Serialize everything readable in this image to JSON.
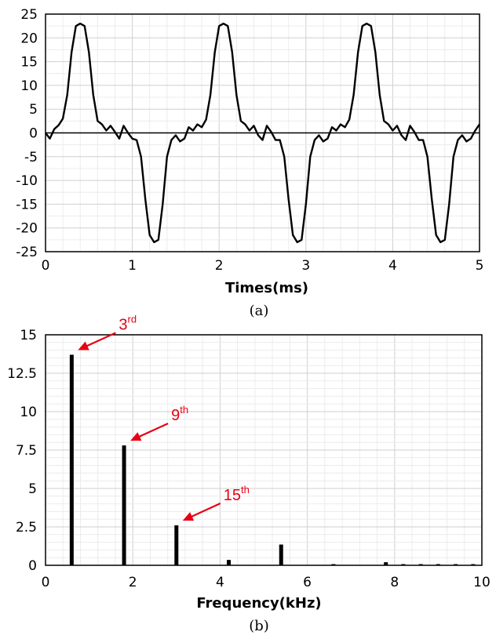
{
  "chart_data": [
    {
      "type": "line",
      "caption": "(a)",
      "title": "",
      "xlabel": "Times(ms)",
      "ylabel": "",
      "xlim": [
        0,
        5
      ],
      "ylim": [
        -25,
        25
      ],
      "xticks": [
        "0",
        "1",
        "2",
        "3",
        "4",
        "5"
      ],
      "yticks": [
        "25",
        "20",
        "15",
        "10",
        "5",
        "0",
        "-5",
        "-10",
        "-15",
        "-20",
        "-25"
      ],
      "grid": true,
      "period_ms": 1.6667,
      "series": [
        {
          "values_description_free": true,
          "x": [
            0,
            0.05,
            0.1,
            0.15,
            0.2,
            0.25,
            0.3,
            0.35,
            0.4,
            0.45,
            0.5,
            0.55,
            0.6,
            0.65,
            0.7,
            0.75,
            0.8,
            0.85,
            0.9,
            0.95,
            1.0,
            1.05,
            1.1,
            1.15,
            1.2,
            1.25,
            1.3,
            1.35,
            1.4,
            1.45,
            1.5,
            1.55,
            1.6,
            1.65,
            1.7,
            1.75,
            1.8,
            1.85,
            1.9,
            1.95,
            2.0,
            2.05,
            2.1,
            2.15,
            2.2,
            2.25,
            2.3,
            2.35,
            2.4,
            2.45,
            2.5,
            2.55,
            2.6,
            2.65,
            2.7,
            2.75,
            2.8,
            2.85,
            2.9,
            2.95,
            3.0,
            3.05,
            3.1,
            3.15,
            3.2,
            3.25,
            3.3,
            3.35,
            3.4,
            3.45,
            3.5,
            3.55,
            3.6,
            3.65,
            3.7,
            3.75,
            3.8,
            3.85,
            3.9,
            3.95,
            4.0,
            4.05,
            4.1,
            4.15,
            4.2,
            4.25,
            4.3,
            4.35,
            4.4,
            4.45,
            4.5,
            4.55,
            4.6,
            4.65,
            4.7,
            4.75,
            4.8,
            4.85,
            4.9,
            4.95,
            5.0
          ],
          "values": [
            0,
            -1.2,
            0.8,
            1.6,
            3,
            8,
            17,
            22.5,
            23,
            22.5,
            17,
            8,
            2.5,
            1.8,
            0.5,
            1.5,
            0.2,
            -1.2,
            1.5,
            0,
            -1.2,
            -1.5,
            -5,
            -14,
            -21.5,
            -23,
            -22.5,
            -15,
            -5,
            -1.5,
            -0.5,
            -1.8,
            -1.2,
            1.2,
            0.5,
            1.8,
            1.2,
            2.8,
            8,
            17,
            22.5,
            23,
            22.5,
            17,
            8,
            2.5,
            1.8,
            0.5,
            1.5,
            -0.5,
            -1.5,
            1.5,
            0.2,
            -1.5,
            -1.5,
            -5,
            -14,
            -21.5,
            -23,
            -22.5,
            -15,
            -5,
            -1.5,
            -0.5,
            -1.8,
            -1.2,
            1.2,
            0.5,
            1.8,
            1.2,
            2.8,
            8,
            17,
            22.5,
            23,
            22.5,
            17,
            8,
            2.5,
            1.8,
            0.5,
            1.5,
            -0.5,
            -1.5,
            1.5,
            0.2,
            -1.5,
            -1.5,
            -5,
            -14,
            -21.5,
            -23,
            -22.5,
            -15,
            -5,
            -1.5,
            -0.5,
            -1.8,
            -1.2,
            0.5,
            1.8
          ]
        }
      ]
    },
    {
      "type": "bar",
      "caption": "(b)",
      "title": "",
      "xlabel": "Frequency(kHz)",
      "ylabel": "",
      "xlim": [
        0,
        10
      ],
      "ylim": [
        0,
        15
      ],
      "xticks": [
        "0",
        "2",
        "4",
        "6",
        "8",
        "10"
      ],
      "yticks": [
        "15",
        "12.5",
        "10",
        "7.5",
        "5",
        "2.5",
        "0"
      ],
      "grid": true,
      "x": [
        0.6,
        1.8,
        3.0,
        4.2,
        5.4,
        6.6,
        7.8,
        8.2,
        8.6,
        9.0,
        9.4,
        9.8
      ],
      "values": [
        13.7,
        7.8,
        2.6,
        0.35,
        1.35,
        0.02,
        0.2,
        0.02,
        0.02,
        0.02,
        0.02,
        0.02
      ],
      "annotations": [
        {
          "base": "3",
          "sup": "rd",
          "x": 0.6,
          "y": 13.7
        },
        {
          "base": "9",
          "sup": "th",
          "x": 1.8,
          "y": 7.8
        },
        {
          "base": "15",
          "sup": "th",
          "x": 3.0,
          "y": 2.6
        }
      ],
      "annotation_color": "#e60012"
    }
  ]
}
